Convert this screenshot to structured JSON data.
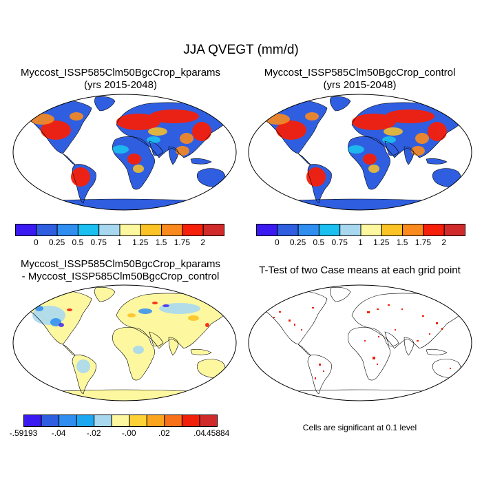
{
  "main_title": "JJA QVEGT (mm/d)",
  "panels": [
    {
      "id": "kparams",
      "title_line1": "Myccost_ISSP585Clm50BgcCrop_kparams",
      "title_line2": "(yrs 2015-2048)"
    },
    {
      "id": "control",
      "title_line1": "Myccost_ISSP585Clm50BgcCrop_control",
      "title_line2": "(yrs 2015-2048)"
    },
    {
      "id": "difference",
      "title_line1": "Myccost_ISSP585Clm50BgcCrop_kparams",
      "title_line2": "- Myccost_ISSP585Clm50BgcCrop_control"
    },
    {
      "id": "ttest",
      "title_line1": "T-Test of two Case means at each grid point",
      "title_line2": ""
    }
  ],
  "colorbars": {
    "field": {
      "colors": [
        "#3a1af0",
        "#2f5fe0",
        "#2f8ef0",
        "#1cc0f0",
        "#a8d8f0",
        "#fdf7a0",
        "#fcc326",
        "#fb8a1e",
        "#f51f0a",
        "#d02a2a"
      ],
      "labels": [
        "0",
        "0.25",
        "0.5",
        "0.75",
        "1",
        "1.25",
        "1.5",
        "1.75",
        "2"
      ]
    },
    "diff": {
      "colors": [
        "#3a1af0",
        "#2f5fe0",
        "#2f8ef0",
        "#1ca8f0",
        "#a8d8f0",
        "#fdf7a0",
        "#fcd236",
        "#fba51e",
        "#f9701a",
        "#f0200a",
        "#d02a2a"
      ],
      "labels": [
        "-.59193",
        "-.04",
        "-.02",
        "-.00",
        ".02",
        ".04",
        ".45884"
      ]
    }
  },
  "ttest_note": "Cells are significant at 0.1 level"
}
